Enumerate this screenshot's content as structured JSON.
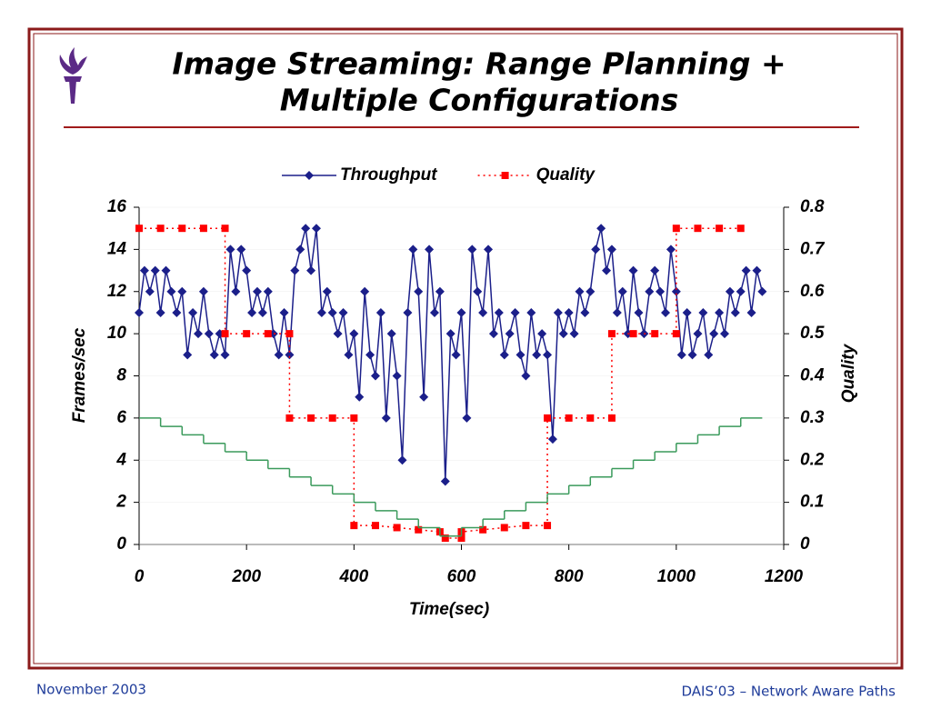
{
  "footer": {
    "left": "November 2003",
    "right": "DAIS’03 – Network Aware Paths"
  },
  "chart_data": {
    "type": "line",
    "title": [
      "Image Streaming: Range Planning +",
      "Multiple Configurations"
    ],
    "x_label": "Time(sec)",
    "y_label": "Frames/sec",
    "y2_label": "Quality",
    "xlim": [
      0,
      1200
    ],
    "xticks": [
      0,
      200,
      400,
      600,
      800,
      1000,
      1200
    ],
    "ylim": [
      0,
      16
    ],
    "yticks": [
      0,
      2,
      4,
      6,
      8,
      10,
      12,
      14,
      16
    ],
    "y2lim": [
      0,
      0.8
    ],
    "y2ticks": [
      0,
      0.1,
      0.2,
      0.3,
      0.4,
      0.5,
      0.6,
      0.7,
      0.8
    ],
    "legend": "top",
    "series": [
      {
        "name": "Throughput",
        "color": "#1b1f8a",
        "marker": "diamond",
        "line": "solid",
        "x": [
          0,
          10,
          20,
          30,
          40,
          50,
          60,
          70,
          80,
          90,
          100,
          110,
          120,
          130,
          140,
          150,
          160,
          170,
          180,
          190,
          200,
          210,
          220,
          230,
          240,
          250,
          260,
          270,
          280,
          290,
          300,
          310,
          320,
          330,
          340,
          350,
          360,
          370,
          380,
          390,
          400,
          410,
          420,
          430,
          440,
          450,
          460,
          470,
          480,
          490,
          500,
          510,
          520,
          530,
          540,
          550,
          560,
          570,
          580,
          590,
          600,
          610,
          620,
          630,
          640,
          650,
          660,
          670,
          680,
          690,
          700,
          710,
          720,
          730,
          740,
          750,
          760,
          770,
          780,
          790,
          800,
          810,
          820,
          830,
          840,
          850,
          860,
          870,
          880,
          890,
          900,
          910,
          920,
          930,
          940,
          950,
          960,
          970,
          980,
          990,
          1000,
          1010,
          1020,
          1030,
          1040,
          1050,
          1060,
          1070,
          1080,
          1090,
          1100,
          1110,
          1120,
          1130,
          1140,
          1150,
          1160
        ],
        "values": [
          11,
          13,
          12,
          13,
          11,
          13,
          12,
          11,
          12,
          9,
          11,
          10,
          12,
          10,
          9,
          10,
          9,
          14,
          12,
          14,
          13,
          11,
          12,
          11,
          12,
          10,
          9,
          11,
          9,
          13,
          14,
          15,
          13,
          15,
          11,
          12,
          11,
          10,
          11,
          9,
          10,
          7,
          12,
          9,
          8,
          11,
          6,
          10,
          8,
          4,
          11,
          14,
          12,
          7,
          14,
          11,
          12,
          3,
          10,
          9,
          11,
          6,
          14,
          12,
          11,
          14,
          10,
          11,
          9,
          10,
          11,
          9,
          8,
          11,
          9,
          10,
          9,
          5,
          11,
          10,
          11,
          10,
          12,
          11,
          12,
          14,
          15,
          13,
          14,
          11,
          12,
          10,
          13,
          11,
          10,
          12,
          13,
          12,
          11,
          14,
          12,
          9,
          11,
          9,
          10,
          11,
          9,
          10,
          11,
          10,
          12,
          11,
          12,
          13,
          11,
          13,
          12
        ]
      },
      {
        "name": "Quality",
        "color": "#ff0000",
        "marker": "square",
        "line": "dotted",
        "axis": "y2",
        "x": [
          0,
          40,
          80,
          120,
          160,
          160,
          200,
          240,
          280,
          280,
          320,
          360,
          400,
          400,
          440,
          480,
          520,
          560,
          570,
          600,
          600,
          640,
          680,
          720,
          760,
          760,
          800,
          840,
          880,
          880,
          920,
          960,
          1000,
          1000,
          1040,
          1080,
          1120
        ],
        "values": [
          0.75,
          0.75,
          0.75,
          0.75,
          0.75,
          0.5,
          0.5,
          0.5,
          0.5,
          0.3,
          0.3,
          0.3,
          0.3,
          0.045,
          0.045,
          0.04,
          0.035,
          0.03,
          0.015,
          0.015,
          0.03,
          0.035,
          0.04,
          0.045,
          0.045,
          0.3,
          0.3,
          0.3,
          0.3,
          0.5,
          0.5,
          0.5,
          0.5,
          0.75,
          0.75,
          0.75,
          0.75
        ]
      },
      {
        "color": "#3a9a5b",
        "line": "steps-post",
        "x": [
          0,
          40,
          80,
          120,
          160,
          200,
          240,
          280,
          320,
          360,
          400,
          440,
          480,
          520,
          560,
          600,
          640,
          680,
          720,
          760,
          800,
          840,
          880,
          920,
          960,
          1000,
          1040,
          1080,
          1120,
          1160
        ],
        "values": [
          6,
          5.6,
          5.2,
          4.8,
          4.4,
          4,
          3.6,
          3.2,
          2.8,
          2.4,
          2,
          1.6,
          1.2,
          0.8,
          0.4,
          0.8,
          1.2,
          1.6,
          2,
          2.4,
          2.8,
          3.2,
          3.6,
          4,
          4.4,
          4.8,
          5.2,
          5.6,
          6,
          6
        ]
      }
    ]
  }
}
